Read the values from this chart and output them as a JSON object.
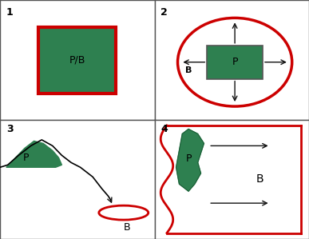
{
  "bg_color": "#ffffff",
  "border_color": "#555555",
  "red_color": "#cc0000",
  "green_fill": "#2e8050",
  "arrow_color": "#111111",
  "panel_labels": [
    "1",
    "2",
    "3",
    "4"
  ]
}
